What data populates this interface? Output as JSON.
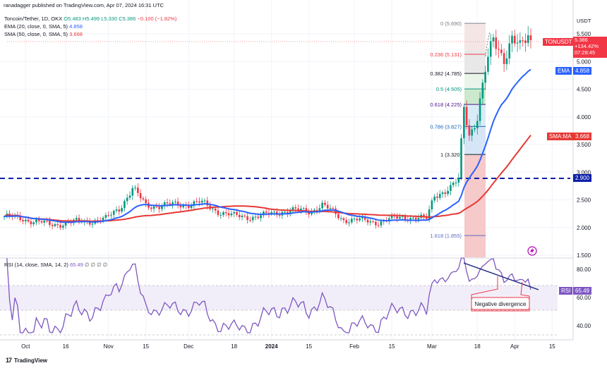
{
  "credit": "ranadagger published on TradingView.com, Apr 07, 2024 16:31 UTC",
  "header": {
    "line1_pair": "Toncoin/Tether, 1D, OKX",
    "line1_ohlc": "O5.483 H5.499 L5.330 C5.386",
    "line1_change": "−0.100 (−1.82%)",
    "line2_label": "EMA (20, close, 0, SMA, 5)",
    "line2_value": "4.858",
    "line3_label": "SMA (50, close, 0, SMA, 5)",
    "line3_value": "3.668"
  },
  "price_axis": {
    "unit": "USDT",
    "ticks": [
      "5.500",
      "5.000",
      "4.500",
      "4.000",
      "3.500",
      "3.000",
      "2.500",
      "2.000",
      "1.500"
    ]
  },
  "price_tag": {
    "symbol": "TONUSDT",
    "price": "5.386",
    "change": "+134.42%",
    "countdown": "07:28:45"
  },
  "ema_tag": {
    "label": "EMA",
    "value": "4.858"
  },
  "sma_tag": {
    "label": "SMA:MA",
    "value": "3.668"
  },
  "support_tag": {
    "value": "2.900"
  },
  "rsi_header": {
    "label": "RSI (14, close, SMA, 14, 2)",
    "value": "65.49",
    "placeholders": "∅ ∅ ∅ ∅"
  },
  "rsi_axis": {
    "ticks": [
      "80.00",
      "60.00",
      "40.00"
    ]
  },
  "rsi_tag": {
    "label": "RSI",
    "value": "65.49"
  },
  "annotation": "Negative divergence",
  "time_axis": [
    "Oct",
    "16",
    "Nov",
    "15",
    "Dec",
    "18",
    "2024",
    "15",
    "Feb",
    "15",
    "Mar",
    "18",
    "Apr",
    "15"
  ],
  "footer": {
    "brand": "TradingView"
  },
  "colors": {
    "up": "#089981",
    "down": "#f23645",
    "ema": "#2962ff",
    "sma": "#e53935",
    "rsi": "#7e57c2",
    "support": "#0d1fa8",
    "fib_green_band": "#c8e6c9",
    "fib_red_band": "#f7c6c7"
  },
  "chart_data": [
    {
      "type": "candlestick",
      "title": "Toncoin/Tether, 1D, OKX",
      "series": [
        {
          "name": "Toncoin/Tether",
          "x_start": "2023-09-23",
          "x_end": "2024-04-07",
          "close_path": [
            [
              "2023-09-23",
              2.2
            ],
            [
              "2023-10-01",
              2.15
            ],
            [
              "2023-10-10",
              2.05
            ],
            [
              "2023-10-20",
              2.1
            ],
            [
              "2023-10-31",
              2.15
            ],
            [
              "2023-11-05",
              2.35
            ],
            [
              "2023-11-10",
              2.7
            ],
            [
              "2023-11-15",
              2.4
            ],
            [
              "2023-11-25",
              2.4
            ],
            [
              "2023-12-05",
              2.45
            ],
            [
              "2023-12-12",
              2.3
            ],
            [
              "2023-12-18",
              2.2
            ],
            [
              "2023-12-28",
              2.2
            ],
            [
              "2024-01-05",
              2.3
            ],
            [
              "2024-01-15",
              2.3
            ],
            [
              "2024-01-20",
              2.4
            ],
            [
              "2024-01-28",
              2.15
            ],
            [
              "2024-02-10",
              2.1
            ],
            [
              "2024-02-20",
              2.2
            ],
            [
              "2024-02-28",
              2.15
            ],
            [
              "2024-03-02",
              2.6
            ],
            [
              "2024-03-08",
              2.7
            ],
            [
              "2024-03-11",
              2.85
            ],
            [
              "2024-03-13",
              4.2
            ],
            [
              "2024-03-15",
              3.7
            ],
            [
              "2024-03-18",
              4.0
            ],
            [
              "2024-03-21",
              4.8
            ],
            [
              "2024-03-24",
              5.4
            ],
            [
              "2024-03-28",
              5.1
            ],
            [
              "2024-03-31",
              5.4
            ],
            [
              "2024-04-03",
              5.2
            ],
            [
              "2024-04-06",
              5.48
            ],
            [
              "2024-04-07",
              5.386
            ]
          ]
        },
        {
          "name": "EMA",
          "values_end": 4.858
        },
        {
          "name": "SMA:MA",
          "values_end": 3.668
        }
      ],
      "horizontal_levels": [
        {
          "value": 2.9,
          "style": "dashed",
          "label": "2.900"
        }
      ],
      "fibonacci": [
        {
          "ratio": "0",
          "price": 5.69
        },
        {
          "ratio": "0.236",
          "price": 5.131
        },
        {
          "ratio": "0.382",
          "price": 4.785
        },
        {
          "ratio": "0.5",
          "price": 4.505
        },
        {
          "ratio": "0.618",
          "price": 4.225
        },
        {
          "ratio": "0.786",
          "price": 3.827
        },
        {
          "ratio": "1",
          "price": 3.32
        },
        {
          "ratio": "1.618",
          "price": 1.855
        }
      ],
      "ylim": [
        1.5,
        5.8
      ]
    },
    {
      "type": "line",
      "title": "RSI (14, close, SMA, 14, 2)",
      "series": [
        {
          "name": "RSI",
          "last": 65.49
        }
      ],
      "ylim": [
        30,
        85
      ],
      "ticks": [
        40,
        60,
        80
      ],
      "bands": [
        30,
        70
      ],
      "annotation": "Negative divergence"
    }
  ]
}
